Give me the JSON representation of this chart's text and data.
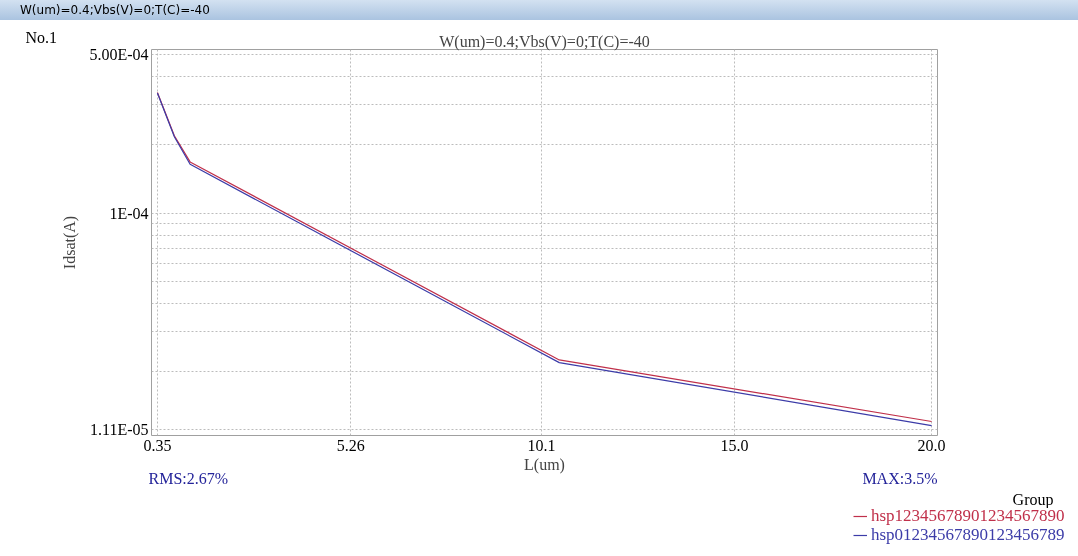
{
  "chart_data": {
    "type": "line",
    "title": "W(um)=0.4;Vbs(V)=0;T(C)=-40",
    "xlabel": "L(um)",
    "ylabel": "Idsat(A)",
    "legend_title": "Group",
    "annotations": [
      "W(um)=0.4;Vbs(V)=0;T(C)=-40",
      "No.1",
      "RMS:2.67%",
      "MAX:3.5%"
    ],
    "x": [
      0.35,
      0.78,
      1.18,
      10.55,
      20.0
    ],
    "series": [
      {
        "name": "hsp12345678901234567890",
        "color": "#c0304a",
        "values": [
          0.00034,
          0.000219,
          0.000168,
          2.25e-05,
          1.205e-05
        ]
      },
      {
        "name": "hsp01234567890123456789",
        "color": "#3c3ca8",
        "values": [
          0.000338,
          0.000217,
          0.000164,
          2.19e-05,
          1.156e-05
        ]
      }
    ],
    "log": "y",
    "xlim": [
      0.2,
      20.15
    ],
    "ylim": [
      1.045e-05,
      0.000526
    ],
    "xticks": [
      0.35,
      5.26,
      10.1,
      {
        "value": 15,
        "label": "15.0"
      },
      {
        "value": 20,
        "label": "20.0"
      }
    ],
    "yticks": [
      {
        "value": 0.0005,
        "label": "5.00E-04"
      },
      {
        "value": 0.0004,
        "label": null
      },
      {
        "value": 0.0003,
        "label": null
      },
      {
        "value": 0.0002,
        "label": null
      },
      {
        "value": 0.0001,
        "label": "1E-04"
      },
      {
        "value": 9e-05,
        "label": null
      },
      {
        "value": 8e-05,
        "label": null
      },
      {
        "value": 7e-05,
        "label": null
      },
      {
        "value": 6e-05,
        "label": null
      },
      {
        "value": 5e-05,
        "label": null
      },
      {
        "value": 4e-05,
        "label": null
      },
      {
        "value": 3e-05,
        "label": null
      },
      {
        "value": 2e-05,
        "label": null
      },
      {
        "value": 1.11e-05,
        "label": "1.11E-05"
      }
    ],
    "grid": true,
    "legend": "bottom right",
    "line_style": "solid"
  }
}
